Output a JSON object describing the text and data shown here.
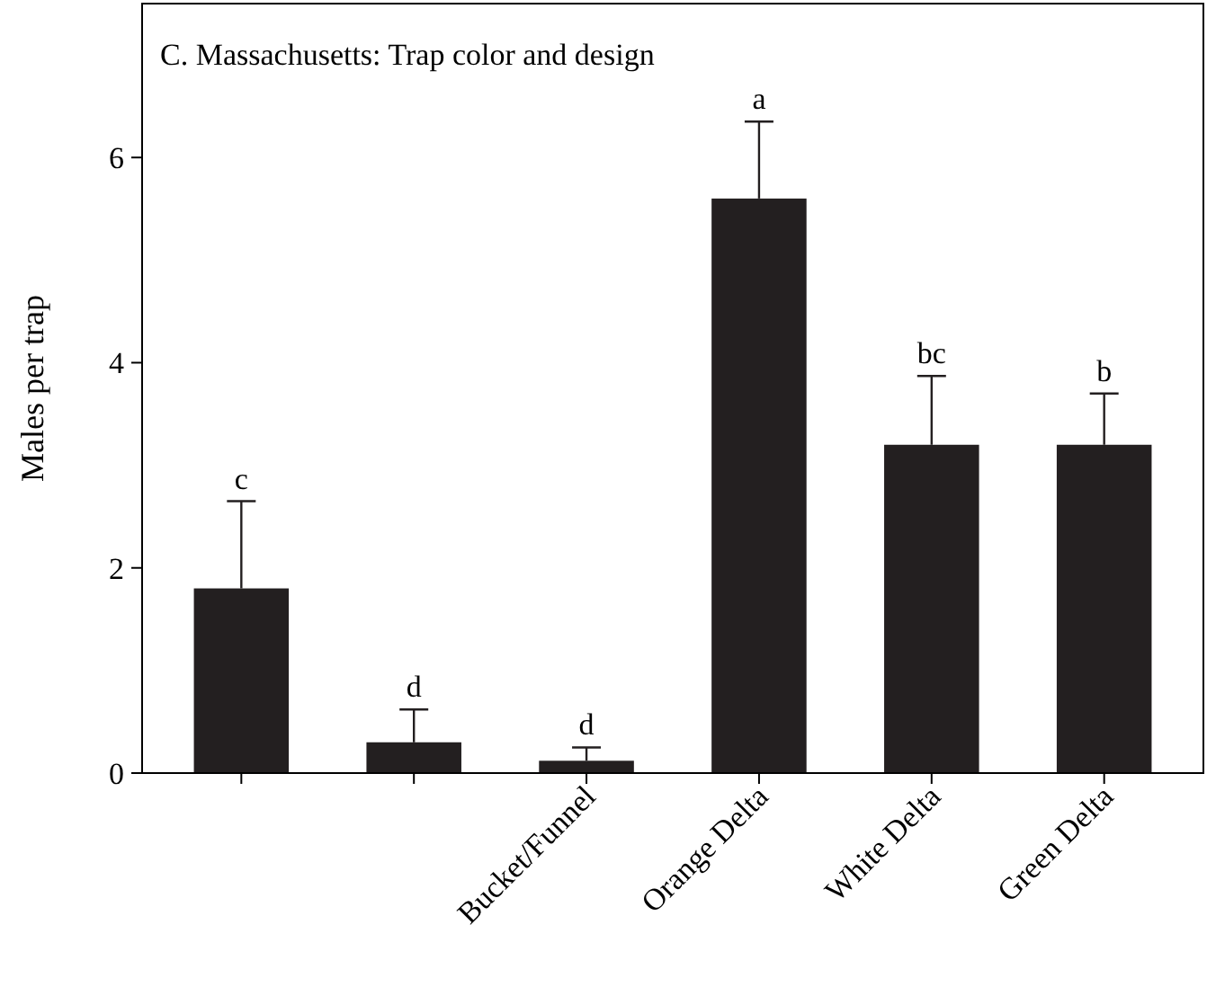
{
  "chart_data": {
    "type": "bar",
    "title": "C. Massachusetts: Trap color and design",
    "ylabel": "Males per trap",
    "categories": [
      null,
      null,
      "Bucket/Funnel",
      "Orange Delta",
      "White Delta",
      "Green Delta"
    ],
    "values": [
      1.8,
      0.3,
      0.12,
      5.6,
      3.2,
      3.2
    ],
    "errors": [
      [
        1.8,
        2.65
      ],
      [
        0.3,
        0.62
      ],
      [
        0.12,
        0.25
      ],
      [
        5.6,
        6.35
      ],
      [
        3.2,
        3.87
      ],
      [
        3.2,
        3.7
      ]
    ],
    "color": "#231f20",
    "ylim": [
      0,
      7.5
    ],
    "yticks": [
      0,
      2,
      4,
      6
    ],
    "grid": false,
    "annotations": [
      "c",
      "d",
      "d",
      "a",
      "bc",
      "b"
    ]
  }
}
